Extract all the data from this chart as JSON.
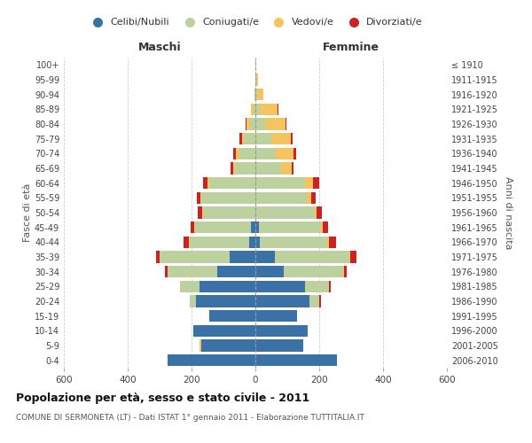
{
  "age_groups": [
    "0-4",
    "5-9",
    "10-14",
    "15-19",
    "20-24",
    "25-29",
    "30-34",
    "35-39",
    "40-44",
    "45-49",
    "50-54",
    "55-59",
    "60-64",
    "65-69",
    "70-74",
    "75-79",
    "80-84",
    "85-89",
    "90-94",
    "95-99",
    "100+"
  ],
  "birth_years": [
    "2006-2010",
    "2001-2005",
    "1996-2000",
    "1991-1995",
    "1986-1990",
    "1981-1985",
    "1976-1980",
    "1971-1975",
    "1966-1970",
    "1961-1965",
    "1956-1960",
    "1951-1955",
    "1946-1950",
    "1941-1945",
    "1936-1940",
    "1931-1935",
    "1926-1930",
    "1921-1925",
    "1916-1920",
    "1911-1915",
    "≤ 1910"
  ],
  "male": {
    "celibe": [
      275,
      170,
      195,
      145,
      185,
      175,
      120,
      80,
      20,
      15,
      0,
      0,
      0,
      0,
      0,
      0,
      0,
      0,
      0,
      0,
      0
    ],
    "coniugato": [
      0,
      0,
      0,
      0,
      20,
      60,
      155,
      220,
      185,
      175,
      165,
      170,
      145,
      65,
      50,
      35,
      18,
      5,
      2,
      0,
      0
    ],
    "vedovo": [
      0,
      5,
      0,
      0,
      0,
      0,
      0,
      0,
      2,
      2,
      3,
      3,
      5,
      5,
      12,
      8,
      10,
      8,
      2,
      0,
      0
    ],
    "divorziato": [
      0,
      0,
      0,
      0,
      0,
      0,
      8,
      12,
      18,
      10,
      12,
      10,
      15,
      8,
      8,
      8,
      2,
      0,
      0,
      0,
      0
    ]
  },
  "female": {
    "nubile": [
      255,
      150,
      165,
      130,
      170,
      155,
      90,
      60,
      15,
      10,
      0,
      0,
      0,
      0,
      0,
      0,
      0,
      0,
      0,
      0,
      0
    ],
    "coniugata": [
      0,
      0,
      0,
      0,
      30,
      75,
      185,
      235,
      210,
      195,
      185,
      160,
      155,
      80,
      65,
      50,
      30,
      15,
      5,
      2,
      0
    ],
    "vedova": [
      0,
      0,
      0,
      0,
      0,
      0,
      2,
      3,
      5,
      5,
      8,
      15,
      25,
      35,
      55,
      60,
      65,
      55,
      20,
      5,
      2
    ],
    "divorziata": [
      0,
      0,
      0,
      0,
      5,
      5,
      10,
      18,
      22,
      18,
      15,
      15,
      20,
      5,
      8,
      8,
      2,
      2,
      0,
      0,
      0
    ]
  },
  "colors": {
    "celibe": "#3a72a8",
    "coniugato": "#bdd19e",
    "vedovo": "#f5c45e",
    "divorziato": "#cc2222"
  },
  "legend_labels": [
    "Celibi/Nubili",
    "Coniugati/e",
    "Vedovi/e",
    "Divorziati/e"
  ],
  "xlim": 600,
  "title": "Popolazione per età, sesso e stato civile - 2011",
  "subtitle": "COMUNE DI SERMONETA (LT) - Dati ISTAT 1° gennaio 2011 - Elaborazione TUTTITALIA.IT",
  "ylabel_left": "Fasce di età",
  "ylabel_right": "Anni di nascita",
  "xlabel_left": "Maschi",
  "xlabel_right": "Femmine"
}
